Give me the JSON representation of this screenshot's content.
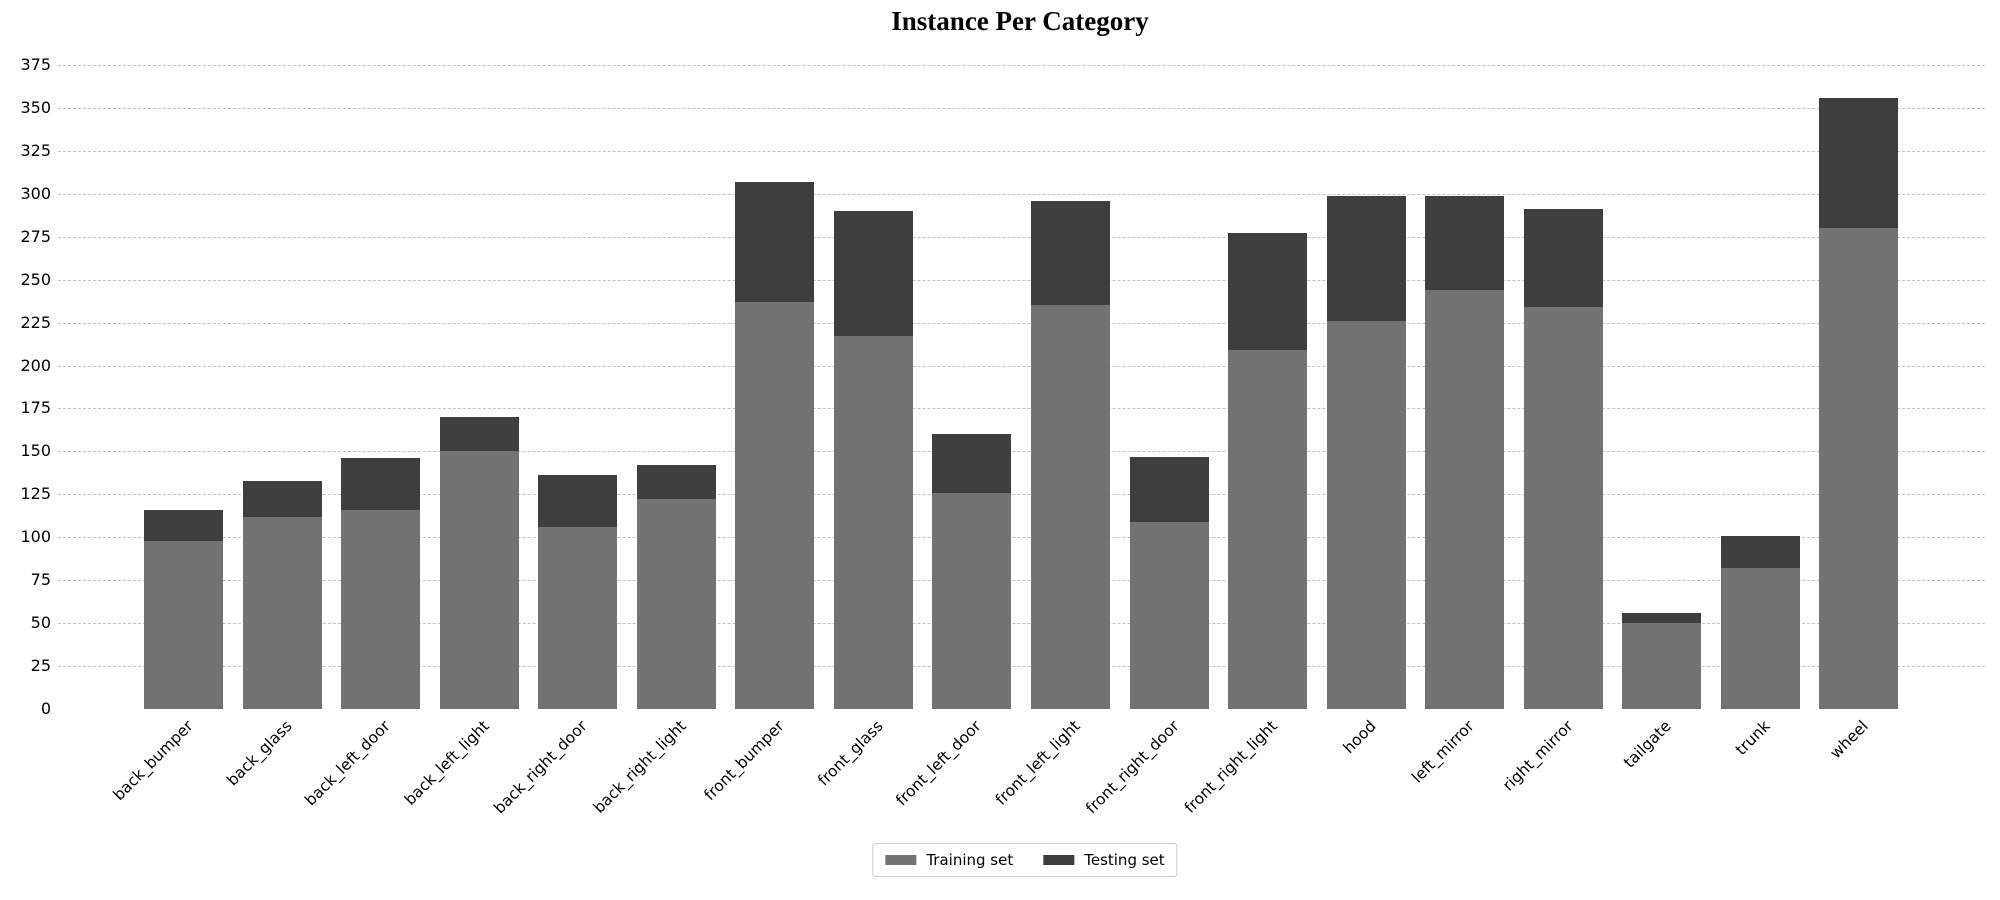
{
  "chart_data": {
    "type": "bar",
    "stacked": true,
    "title": "Instance Per Category",
    "categories": [
      "back_bumper",
      "back_glass",
      "back_left_door",
      "back_left_light",
      "back_right_door",
      "back_right_light",
      "front_bumper",
      "front_glass",
      "front_left_door",
      "front_left_light",
      "front_right_door",
      "front_right_light",
      "hood",
      "left_mirror",
      "right_mirror",
      "tailgate",
      "trunk",
      "wheel"
    ],
    "series": [
      {
        "name": "Training set",
        "color": "#727272",
        "values": [
          98,
          112,
          116,
          150,
          106,
          122,
          237,
          217,
          126,
          235,
          109,
          209,
          226,
          244,
          234,
          50,
          82,
          280
        ]
      },
      {
        "name": "Testing set",
        "color": "#3E3E3E",
        "values": [
          18,
          21,
          30,
          20,
          30,
          20,
          70,
          73,
          34,
          61,
          38,
          68,
          73,
          55,
          57,
          6,
          19,
          76
        ]
      }
    ],
    "totals": [
      116,
      133,
      146,
      170,
      136,
      142,
      307,
      290,
      160,
      296,
      147,
      277,
      299,
      299,
      291,
      56,
      101,
      356
    ],
    "xlabel": "",
    "ylabel": "",
    "ylim": [
      0,
      390
    ],
    "yticks": [
      0,
      25,
      50,
      75,
      100,
      125,
      150,
      175,
      200,
      225,
      250,
      275,
      300,
      325,
      350,
      375
    ],
    "grid": "horizontal-dashed",
    "grid_color": "#c3c3c3",
    "legend_position": "bottom-center",
    "x_tick_rotation_deg": 45
  }
}
